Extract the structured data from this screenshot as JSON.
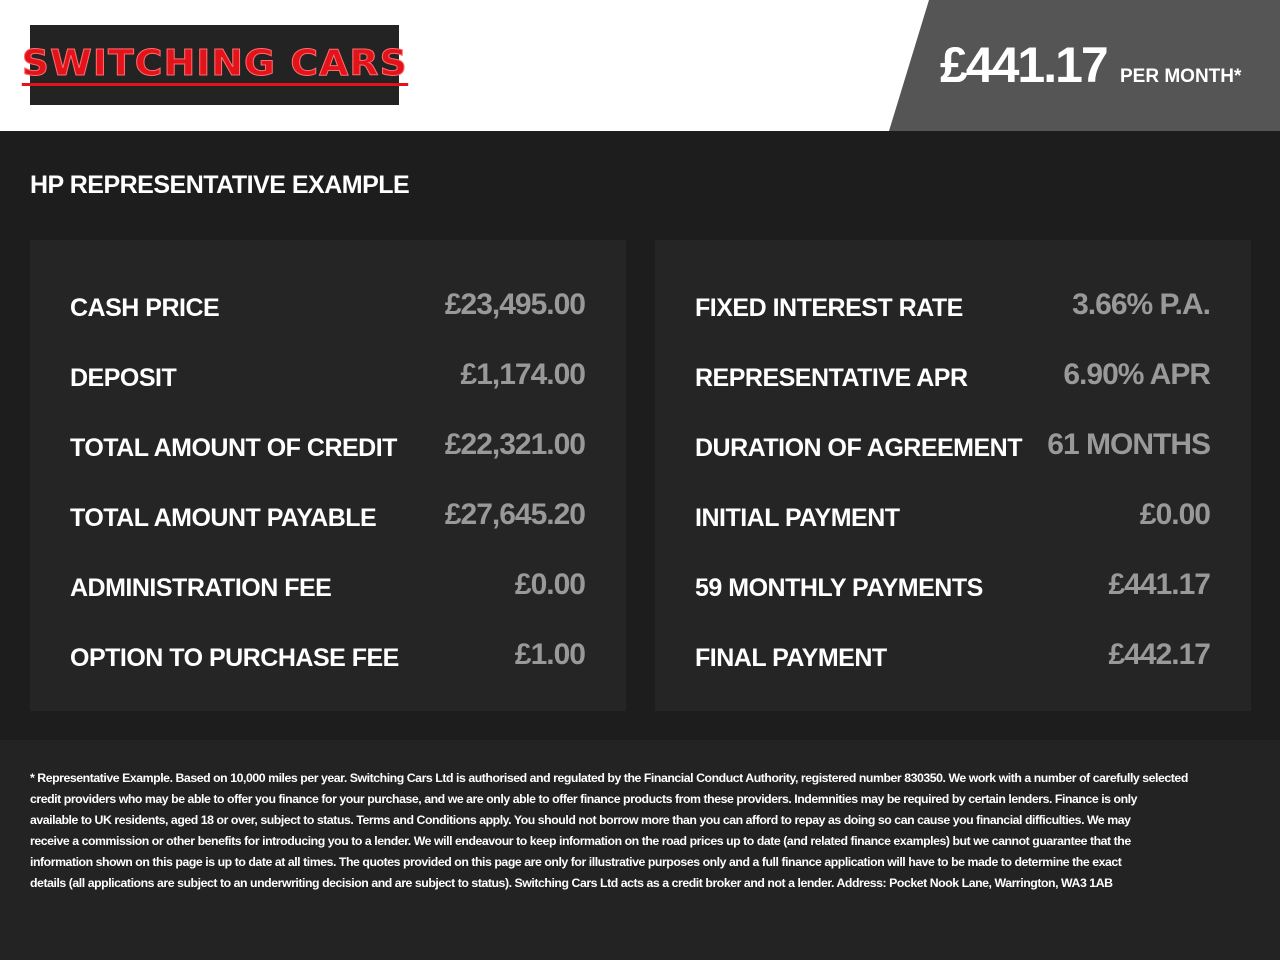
{
  "brand": {
    "logo_text": "SWITCHING CARS",
    "logo_color": "#e3131b"
  },
  "header": {
    "price": "£441.17",
    "per_month": "PER MONTH*"
  },
  "title": "HP REPRESENTATIVE EXAMPLE",
  "left": [
    {
      "label": "CASH PRICE",
      "value": "£23,495.00"
    },
    {
      "label": "DEPOSIT",
      "value": "£1,174.00"
    },
    {
      "label": "TOTAL AMOUNT OF CREDIT",
      "value": "£22,321.00"
    },
    {
      "label": "TOTAL AMOUNT PAYABLE",
      "value": "£27,645.20"
    },
    {
      "label": "ADMINISTRATION FEE",
      "value": "£0.00"
    },
    {
      "label": "OPTION TO PURCHASE FEE",
      "value": "£1.00"
    }
  ],
  "right": [
    {
      "label": "FIXED INTEREST RATE",
      "value": "3.66% P.A."
    },
    {
      "label": "REPRESENTATIVE APR",
      "value": "6.90% APR"
    },
    {
      "label": "DURATION OF AGREEMENT",
      "value": "61 MONTHS"
    },
    {
      "label": "INITIAL PAYMENT",
      "value": "£0.00"
    },
    {
      "label": "59 MONTHLY PAYMENTS",
      "value": "£441.17"
    },
    {
      "label": "FINAL PAYMENT",
      "value": "£442.17"
    }
  ],
  "footer": [
    "* Representative Example. Based on 10,000 miles per year. Switching Cars Ltd is authorised and regulated by the Financial Conduct Authority, registered number 830350. We work with a number of carefully selected",
    "credit providers who may be able to offer you finance for your purchase, and we are only able to offer finance products from these providers. Indemnities may be required by certain lenders. Finance is only",
    "available to UK residents, aged 18 or over, subject to status. Terms and Conditions apply. You should not borrow more than you can afford to repay as doing so can cause you financial difficulties. We may",
    "receive a commission or other benefits for introducing you to a lender. We will endeavour to keep information on the road prices up to date (and related finance examples) but we cannot guarantee that the",
    "information shown on this page is up to date at all times. The quotes provided on this page are only for illustrative purposes only and a full finance application will have to be made to determine the exact",
    "details (all applications are subject to an underwriting decision and are subject to status). Switching Cars Ltd acts as a credit broker and not a lender. Address: Pocket Nook Lane, Warrington, WA3 1AB"
  ]
}
